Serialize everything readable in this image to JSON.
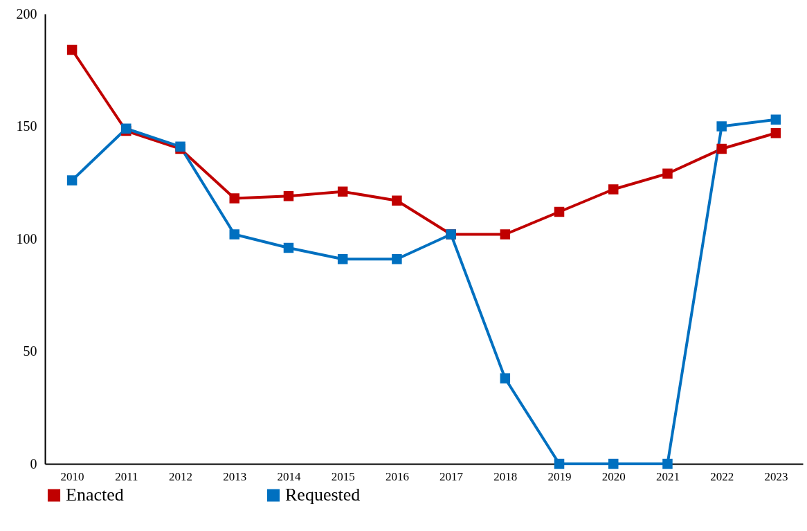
{
  "chart_data": {
    "type": "line",
    "categories": [
      "2010",
      "2011",
      "2012",
      "2013",
      "2014",
      "2015",
      "2016",
      "2017",
      "2018",
      "2019",
      "2020",
      "2021",
      "2022",
      "2023"
    ],
    "series": [
      {
        "name": "Enacted",
        "color": "#c00000",
        "values": [
          184,
          148,
          140,
          118,
          119,
          121,
          117,
          102,
          102,
          112,
          122,
          129,
          140,
          147
        ]
      },
      {
        "name": "Requested",
        "color": "#0070c0",
        "values": [
          126,
          149,
          141,
          102,
          96,
          91,
          91,
          102,
          38,
          0,
          0,
          0,
          150,
          153
        ]
      }
    ],
    "ylim": [
      0,
      200
    ],
    "yticks": [
      0,
      50,
      100,
      150,
      200
    ],
    "grid": false,
    "legend": "bottom",
    "marker": "square",
    "line_style": "solid"
  }
}
